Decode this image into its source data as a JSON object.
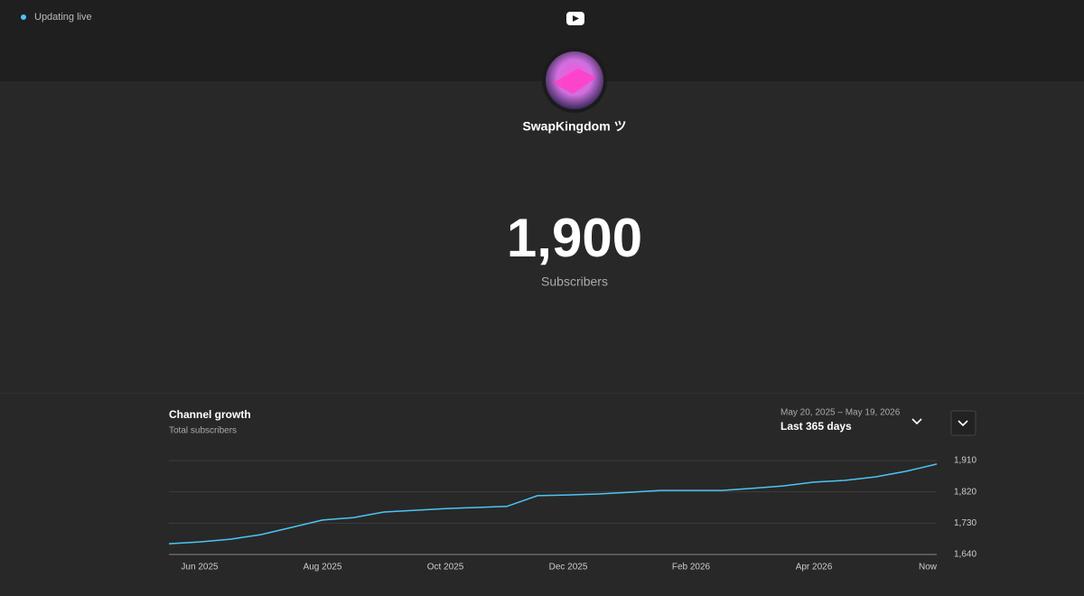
{
  "status_text": "Updating live",
  "channel_name": "SwapKingdom ツ",
  "subscriber_count": "1,900",
  "subscriber_label": "Subscribers",
  "chart_data": {
    "type": "line",
    "title": "Channel growth",
    "subtitle": "Total subscribers",
    "date_range": "May 20, 2025 – May 19, 2026",
    "range_label": "Last 365 days",
    "categories": [
      null,
      "Jun 2025",
      null,
      null,
      null,
      "Aug 2025",
      null,
      null,
      null,
      "Oct 2025",
      null,
      null,
      null,
      "Dec 2025",
      null,
      null,
      null,
      "Feb 2026",
      null,
      null,
      null,
      "Apr 2026",
      null,
      null,
      null,
      "Now"
    ],
    "values": [
      1671,
      1676,
      1684,
      1697,
      1718,
      1739,
      1746,
      1762,
      1767,
      1772,
      1775,
      1778,
      1809,
      1811,
      1814,
      1819,
      1824,
      1824,
      1824,
      1830,
      1837,
      1848,
      1853,
      1863,
      1879,
      1900
    ],
    "color": "#4fc3f7",
    "ylim": [
      1640,
      1910
    ],
    "yticks": [
      {
        "value": 1640,
        "label": "1,640"
      },
      {
        "value": 1730,
        "label": "1,730"
      },
      {
        "value": 1820,
        "label": "1,820"
      },
      {
        "value": 1910,
        "label": "1,910"
      }
    ],
    "grid": true
  }
}
